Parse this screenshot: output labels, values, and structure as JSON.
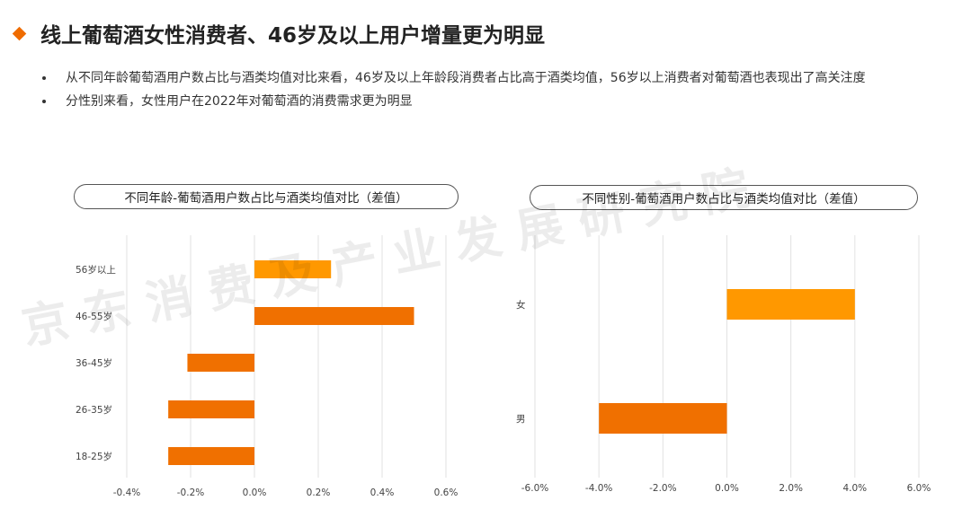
{
  "header": {
    "title": "线上葡萄酒女性消费者、46岁及以上用户增量更为明显"
  },
  "bullets": [
    "从不同年龄葡萄酒用户数占比与酒类均值对比来看，46岁及以上年龄段消费者占比高于酒类均值，56岁以上消费者对葡萄酒也表现出了高关注度",
    "分性别来看，女性用户在2022年对葡萄酒的消费需求更为明显"
  ],
  "watermark": "京东消费及产业发展研究院",
  "colors": {
    "accent": "#ef6c00",
    "highlight": "#ff9800",
    "bar": "#f07000"
  },
  "chart_data": [
    {
      "type": "bar",
      "orientation": "horizontal",
      "title": "不同年龄-葡萄酒用户数占比与酒类均值对比（差值）",
      "categories": [
        "56岁以上",
        "46-55岁",
        "36-45岁",
        "26-35岁",
        "18-25岁"
      ],
      "values": [
        0.0024,
        0.005,
        -0.0021,
        -0.0027,
        -0.0027
      ],
      "bar_colors": [
        "#ff9800",
        "#f07000",
        "#f07000",
        "#f07000",
        "#f07000"
      ],
      "xlim": [
        -0.004,
        0.006
      ],
      "xticks": [
        -0.004,
        -0.002,
        0,
        0.002,
        0.004,
        0.006
      ],
      "xtick_labels": [
        "-0.4%",
        "-0.2%",
        "0.0%",
        "0.2%",
        "0.4%",
        "0.6%"
      ],
      "grid": true
    },
    {
      "type": "bar",
      "orientation": "horizontal",
      "title": "不同性别-葡萄酒用户数占比与酒类均值对比（差值）",
      "categories": [
        "女",
        "男"
      ],
      "values": [
        0.04,
        -0.04
      ],
      "bar_colors": [
        "#ff9800",
        "#f07000"
      ],
      "xlim": [
        -0.06,
        0.06
      ],
      "xticks": [
        -0.06,
        -0.04,
        -0.02,
        0,
        0.02,
        0.04,
        0.06
      ],
      "xtick_labels": [
        "-6.0%",
        "-4.0%",
        "-2.0%",
        "0.0%",
        "2.0%",
        "4.0%",
        "6.0%"
      ],
      "grid": true
    }
  ]
}
